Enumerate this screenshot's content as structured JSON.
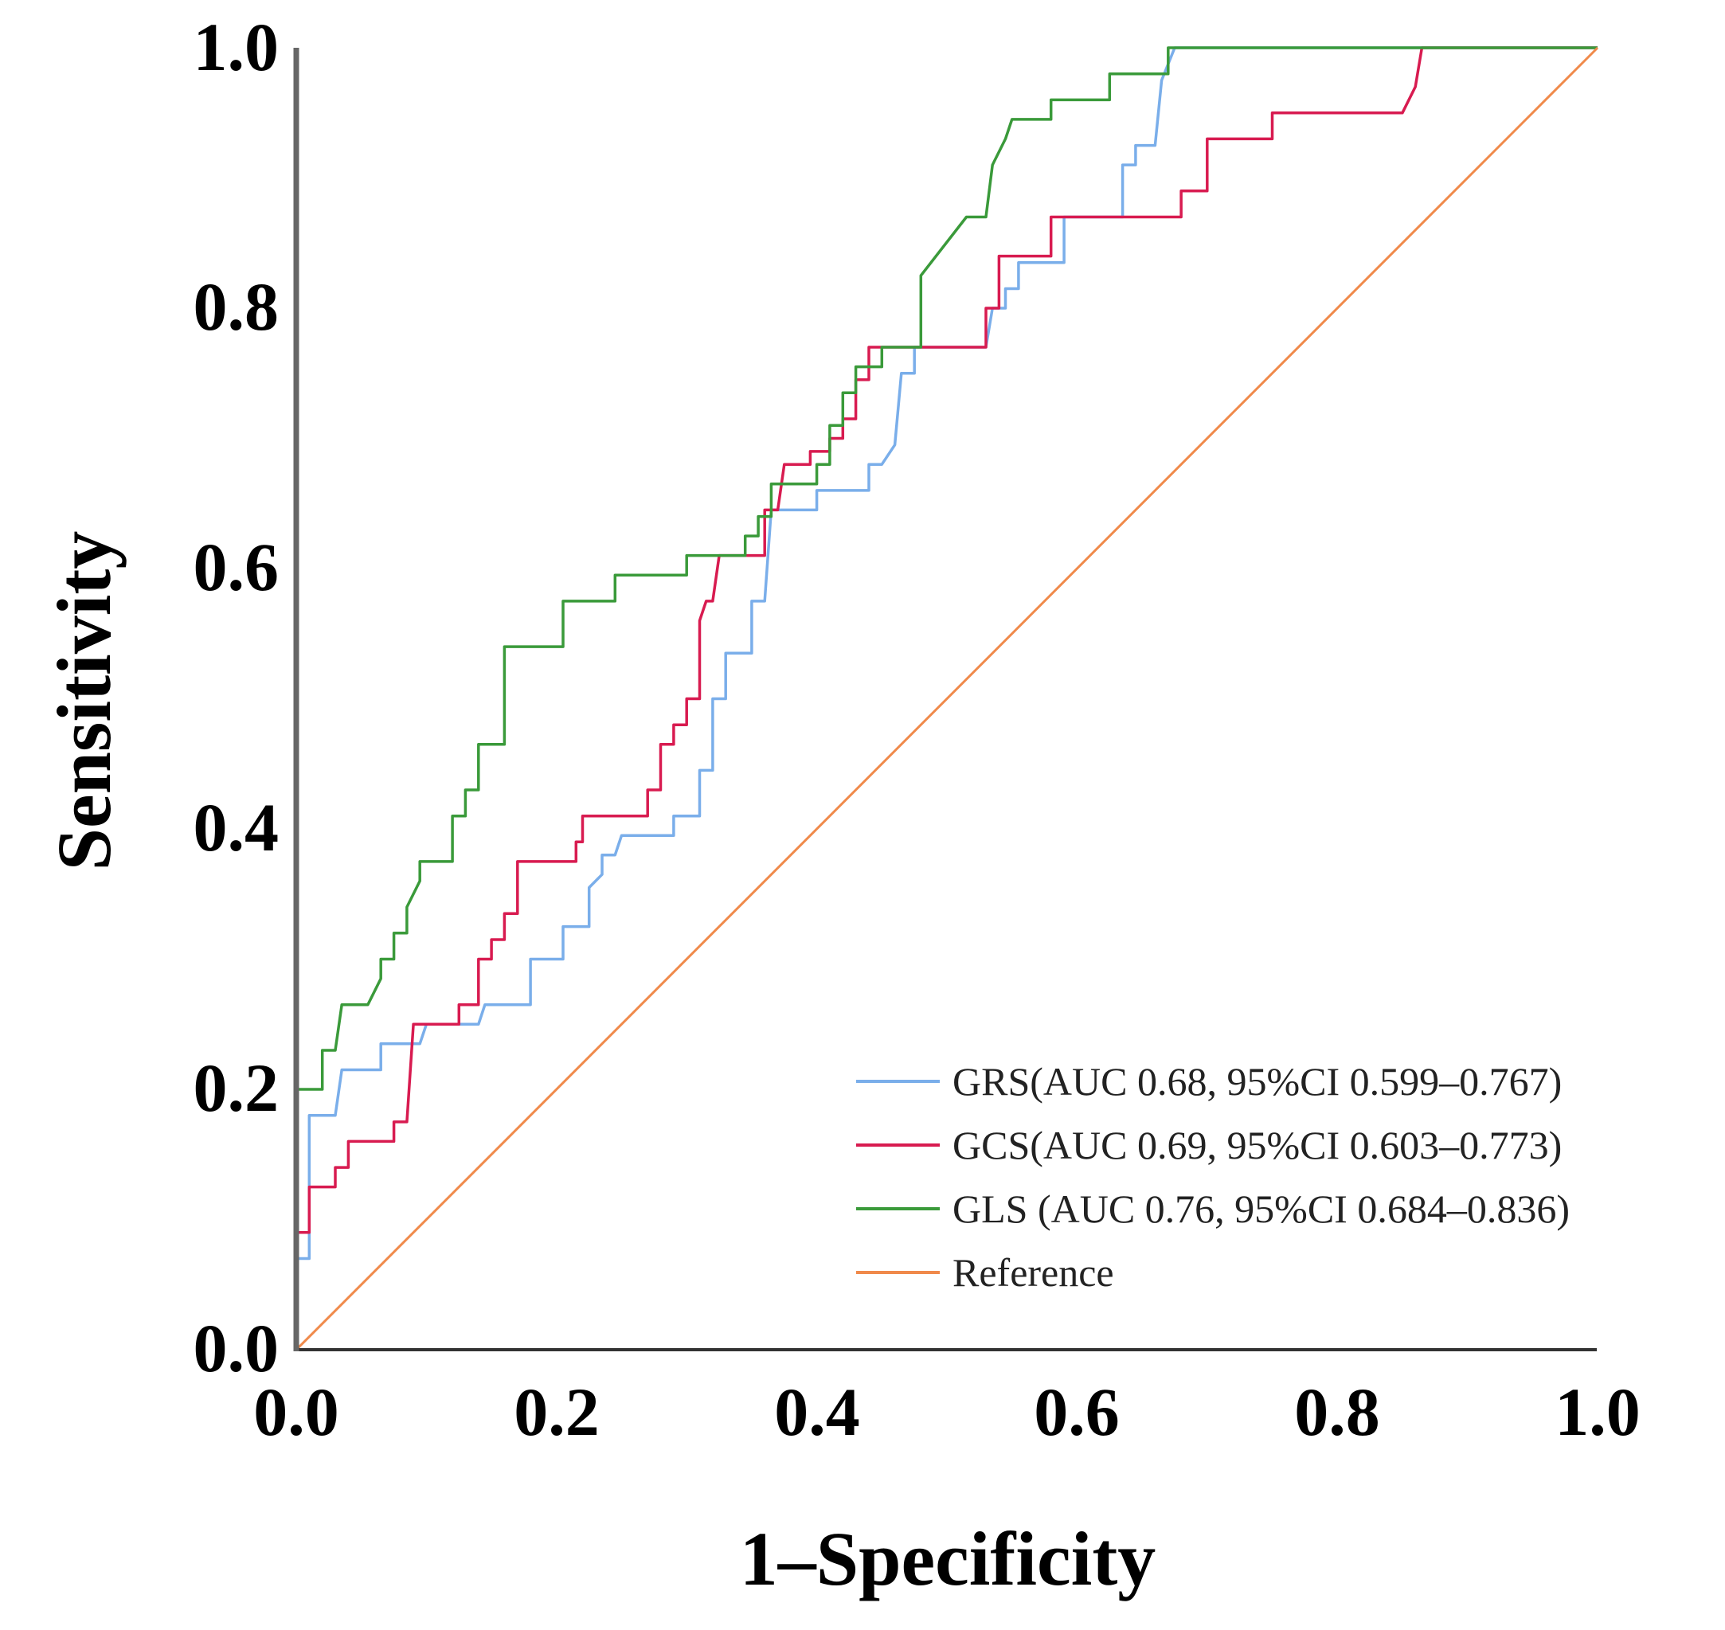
{
  "chart_data": {
    "type": "line",
    "title": "",
    "xlabel": "1–Specificity",
    "ylabel": "Sensitivity",
    "xlim": [
      0,
      1
    ],
    "ylim": [
      0,
      1
    ],
    "grid": false,
    "legend_position": "bottom-right",
    "x_ticks": [
      "0.0",
      "0.2",
      "0.4",
      "0.6",
      "0.8",
      "1.0"
    ],
    "y_ticks": [
      "0.0",
      "0.2",
      "0.4",
      "0.6",
      "0.8",
      "1.0"
    ],
    "series": [
      {
        "name": "GRS(AUC 0.68, 95%CI 0.599–0.767)",
        "color": "#7aaeea",
        "points": [
          [
            0,
            0
          ],
          [
            0,
            0.07
          ],
          [
            0.01,
            0.07
          ],
          [
            0.01,
            0.18
          ],
          [
            0.03,
            0.18
          ],
          [
            0.035,
            0.215
          ],
          [
            0.065,
            0.215
          ],
          [
            0.065,
            0.235
          ],
          [
            0.095,
            0.235
          ],
          [
            0.1,
            0.25
          ],
          [
            0.14,
            0.25
          ],
          [
            0.145,
            0.265
          ],
          [
            0.18,
            0.265
          ],
          [
            0.18,
            0.3
          ],
          [
            0.205,
            0.3
          ],
          [
            0.205,
            0.325
          ],
          [
            0.225,
            0.325
          ],
          [
            0.225,
            0.355
          ],
          [
            0.235,
            0.365
          ],
          [
            0.235,
            0.38
          ],
          [
            0.245,
            0.38
          ],
          [
            0.25,
            0.395
          ],
          [
            0.29,
            0.395
          ],
          [
            0.29,
            0.41
          ],
          [
            0.31,
            0.41
          ],
          [
            0.31,
            0.445
          ],
          [
            0.32,
            0.445
          ],
          [
            0.32,
            0.5
          ],
          [
            0.33,
            0.5
          ],
          [
            0.33,
            0.535
          ],
          [
            0.35,
            0.535
          ],
          [
            0.35,
            0.575
          ],
          [
            0.36,
            0.575
          ],
          [
            0.365,
            0.645
          ],
          [
            0.4,
            0.645
          ],
          [
            0.4,
            0.66
          ],
          [
            0.44,
            0.66
          ],
          [
            0.44,
            0.68
          ],
          [
            0.45,
            0.68
          ],
          [
            0.46,
            0.695
          ],
          [
            0.465,
            0.75
          ],
          [
            0.475,
            0.75
          ],
          [
            0.475,
            0.77
          ],
          [
            0.53,
            0.77
          ],
          [
            0.535,
            0.8
          ],
          [
            0.545,
            0.8
          ],
          [
            0.545,
            0.815
          ],
          [
            0.555,
            0.815
          ],
          [
            0.555,
            0.835
          ],
          [
            0.59,
            0.835
          ],
          [
            0.59,
            0.87
          ],
          [
            0.635,
            0.87
          ],
          [
            0.635,
            0.91
          ],
          [
            0.645,
            0.91
          ],
          [
            0.645,
            0.925
          ],
          [
            0.66,
            0.925
          ],
          [
            0.665,
            0.975
          ],
          [
            0.675,
            1
          ],
          [
            1,
            1
          ]
        ]
      },
      {
        "name": "GCS(AUC 0.69, 95%CI 0.603–0.773)",
        "color": "#d81b50",
        "points": [
          [
            0,
            0
          ],
          [
            0,
            0.09
          ],
          [
            0.01,
            0.09
          ],
          [
            0.01,
            0.125
          ],
          [
            0.03,
            0.125
          ],
          [
            0.03,
            0.14
          ],
          [
            0.04,
            0.14
          ],
          [
            0.04,
            0.16
          ],
          [
            0.075,
            0.16
          ],
          [
            0.075,
            0.175
          ],
          [
            0.085,
            0.175
          ],
          [
            0.09,
            0.25
          ],
          [
            0.125,
            0.25
          ],
          [
            0.125,
            0.265
          ],
          [
            0.14,
            0.265
          ],
          [
            0.14,
            0.3
          ],
          [
            0.15,
            0.3
          ],
          [
            0.15,
            0.315
          ],
          [
            0.16,
            0.315
          ],
          [
            0.16,
            0.335
          ],
          [
            0.17,
            0.335
          ],
          [
            0.17,
            0.375
          ],
          [
            0.215,
            0.375
          ],
          [
            0.215,
            0.39
          ],
          [
            0.22,
            0.39
          ],
          [
            0.22,
            0.41
          ],
          [
            0.27,
            0.41
          ],
          [
            0.27,
            0.43
          ],
          [
            0.28,
            0.43
          ],
          [
            0.28,
            0.465
          ],
          [
            0.29,
            0.465
          ],
          [
            0.29,
            0.48
          ],
          [
            0.3,
            0.48
          ],
          [
            0.3,
            0.5
          ],
          [
            0.31,
            0.5
          ],
          [
            0.31,
            0.56
          ],
          [
            0.315,
            0.575
          ],
          [
            0.32,
            0.575
          ],
          [
            0.325,
            0.61
          ],
          [
            0.36,
            0.61
          ],
          [
            0.36,
            0.645
          ],
          [
            0.37,
            0.645
          ],
          [
            0.375,
            0.68
          ],
          [
            0.395,
            0.68
          ],
          [
            0.395,
            0.69
          ],
          [
            0.41,
            0.69
          ],
          [
            0.41,
            0.7
          ],
          [
            0.42,
            0.7
          ],
          [
            0.42,
            0.715
          ],
          [
            0.43,
            0.715
          ],
          [
            0.43,
            0.745
          ],
          [
            0.44,
            0.745
          ],
          [
            0.44,
            0.77
          ],
          [
            0.53,
            0.77
          ],
          [
            0.53,
            0.8
          ],
          [
            0.54,
            0.8
          ],
          [
            0.54,
            0.84
          ],
          [
            0.58,
            0.84
          ],
          [
            0.58,
            0.87
          ],
          [
            0.68,
            0.87
          ],
          [
            0.68,
            0.89
          ],
          [
            0.7,
            0.89
          ],
          [
            0.7,
            0.93
          ],
          [
            0.75,
            0.93
          ],
          [
            0.75,
            0.95
          ],
          [
            0.85,
            0.95
          ],
          [
            0.86,
            0.97
          ],
          [
            0.865,
            1
          ],
          [
            1,
            1
          ]
        ]
      },
      {
        "name": "GLS (AUC 0.76, 95%CI 0.684–0.836)",
        "color": "#3a9a3a",
        "points": [
          [
            0,
            0
          ],
          [
            0,
            0.2
          ],
          [
            0.02,
            0.2
          ],
          [
            0.02,
            0.23
          ],
          [
            0.03,
            0.23
          ],
          [
            0.035,
            0.265
          ],
          [
            0.055,
            0.265
          ],
          [
            0.065,
            0.285
          ],
          [
            0.065,
            0.3
          ],
          [
            0.075,
            0.3
          ],
          [
            0.075,
            0.32
          ],
          [
            0.085,
            0.32
          ],
          [
            0.085,
            0.34
          ],
          [
            0.095,
            0.36
          ],
          [
            0.095,
            0.375
          ],
          [
            0.12,
            0.375
          ],
          [
            0.12,
            0.41
          ],
          [
            0.13,
            0.41
          ],
          [
            0.13,
            0.43
          ],
          [
            0.14,
            0.43
          ],
          [
            0.14,
            0.465
          ],
          [
            0.16,
            0.465
          ],
          [
            0.16,
            0.54
          ],
          [
            0.205,
            0.54
          ],
          [
            0.205,
            0.575
          ],
          [
            0.245,
            0.575
          ],
          [
            0.245,
            0.595
          ],
          [
            0.3,
            0.595
          ],
          [
            0.3,
            0.61
          ],
          [
            0.345,
            0.61
          ],
          [
            0.345,
            0.625
          ],
          [
            0.355,
            0.625
          ],
          [
            0.355,
            0.64
          ],
          [
            0.365,
            0.64
          ],
          [
            0.365,
            0.665
          ],
          [
            0.4,
            0.665
          ],
          [
            0.4,
            0.68
          ],
          [
            0.41,
            0.68
          ],
          [
            0.41,
            0.71
          ],
          [
            0.42,
            0.71
          ],
          [
            0.42,
            0.735
          ],
          [
            0.43,
            0.735
          ],
          [
            0.43,
            0.755
          ],
          [
            0.45,
            0.755
          ],
          [
            0.45,
            0.77
          ],
          [
            0.48,
            0.77
          ],
          [
            0.48,
            0.825
          ],
          [
            0.515,
            0.87
          ],
          [
            0.53,
            0.87
          ],
          [
            0.535,
            0.91
          ],
          [
            0.545,
            0.93
          ],
          [
            0.55,
            0.945
          ],
          [
            0.58,
            0.945
          ],
          [
            0.58,
            0.96
          ],
          [
            0.625,
            0.96
          ],
          [
            0.625,
            0.98
          ],
          [
            0.67,
            0.98
          ],
          [
            0.67,
            1
          ],
          [
            1,
            1
          ]
        ]
      },
      {
        "name": "Reference",
        "color": "#f08a4b",
        "points": [
          [
            0,
            0
          ],
          [
            1,
            1
          ]
        ]
      }
    ]
  }
}
